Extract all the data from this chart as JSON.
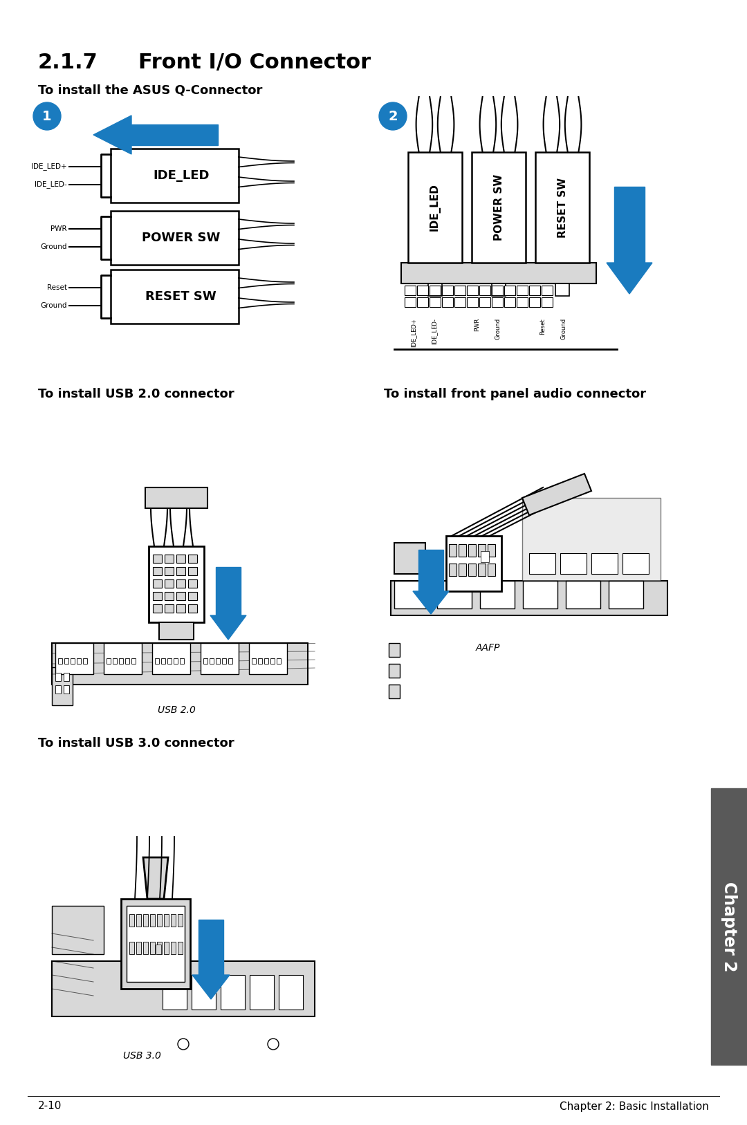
{
  "bg_color": "#ffffff",
  "page_number": "2-10",
  "footer_right": "Chapter 2: Basic Installation",
  "chapter_label": "Chapter 2",
  "chapter_tab_color": "#595959",
  "title_num": "2.1.7",
  "title_text": "Front I/O Connector",
  "section1_title": "To install the ASUS Q-Connector",
  "section2_title": "To install USB 2.0 connector",
  "section3_title": "To install front panel audio connector",
  "section4_title": "To install USB 3.0 connector",
  "usb20_label": "USB 2.0",
  "usb30_label": "USB 3.0",
  "aafp_label": "AAFP",
  "arrow_color": "#1a7bbf",
  "black": "#000000",
  "gray_light": "#d8d8d8",
  "gray_mid": "#b0b0b0",
  "gray_dark": "#888888",
  "connector_labels": [
    "IDE_LED",
    "POWER SW",
    "RESET SW"
  ],
  "sub_labels_left": [
    [
      "IDE_LED+",
      "IDE_LED-"
    ],
    [
      "PWR",
      "Ground"
    ],
    [
      "Reset",
      "Ground"
    ]
  ],
  "sub_labels_bottom": [
    "IDE_LED+",
    "IDE_LED-",
    "PWR",
    "Ground",
    "Reset",
    "Ground"
  ]
}
